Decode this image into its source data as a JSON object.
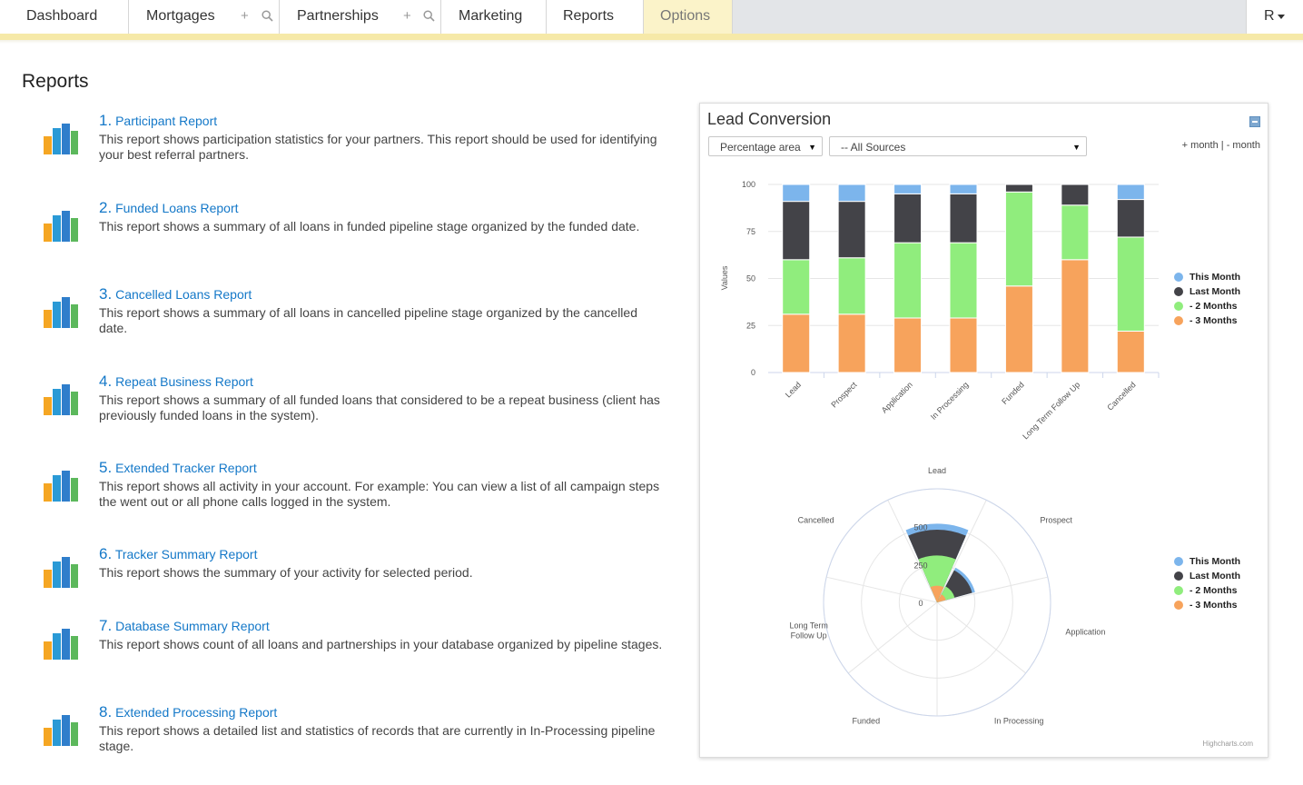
{
  "nav": {
    "tabs": [
      {
        "label": "Dashboard"
      },
      {
        "label": "Mortgages"
      },
      {
        "label": "Partnerships"
      },
      {
        "label": "Marketing"
      },
      {
        "label": "Reports"
      },
      {
        "label": "Options"
      }
    ],
    "add_icon": "+",
    "user_label": "R"
  },
  "page": {
    "title": "Reports"
  },
  "reports": [
    {
      "num": "1.",
      "title": "Participant Report",
      "desc": "This report shows participation statistics for your partners. This report should be used for identifying your best referral partners."
    },
    {
      "num": "2.",
      "title": "Funded Loans Report",
      "desc": "This report shows a summary of all loans in funded pipeline stage organized by the funded date."
    },
    {
      "num": "3.",
      "title": "Cancelled Loans Report",
      "desc": "This report shows a summary of all loans in cancelled pipeline stage organized by the cancelled date."
    },
    {
      "num": "4.",
      "title": "Repeat Business Report",
      "desc": "This report shows a summary of all funded loans that considered to be a repeat business (client has previously funded loans in the system)."
    },
    {
      "num": "5.",
      "title": "Extended Tracker Report",
      "desc": "This report shows all activity in your account. For example: You can view a list of all campaign steps the went out or all phone calls logged in the system."
    },
    {
      "num": "6.",
      "title": "Tracker Summary Report",
      "desc": "This report shows the summary of your activity for selected period."
    },
    {
      "num": "7.",
      "title": "Database Summary Report",
      "desc": "This report shows count of all loans and partnerships in your database organized by pipeline stages."
    },
    {
      "num": "8.",
      "title": "Extended Processing Report",
      "desc": "This report shows a detailed list and statistics of records that are currently in In-Processing pipeline stage."
    }
  ],
  "panel": {
    "title": "Lead Conversion",
    "type_select": "Percentage area",
    "source_select": "-- All Sources",
    "month_toggle": "+ month  |  - month",
    "credits": "Highcharts.com"
  },
  "colors": {
    "this_month": "#7cb5ec",
    "last_month": "#434348",
    "two_months": "#90ed7d",
    "three_months": "#f7a35c",
    "link": "#1478c8",
    "nav_accent": "#f6e9a8"
  },
  "chart_data": [
    {
      "type": "bar",
      "stacking": "percent",
      "categories": [
        "Lead",
        "Prospect",
        "Application",
        "In Processing",
        "Funded",
        "Long Term Follow Up",
        "Cancelled"
      ],
      "ylabel": "Values",
      "ylim": [
        0,
        100
      ],
      "yticks": [
        0,
        25,
        50,
        75,
        100
      ],
      "series": [
        {
          "name": "This Month",
          "values": [
            9,
            9,
            5,
            5,
            0,
            0,
            8
          ]
        },
        {
          "name": "Last Month",
          "values": [
            31,
            30,
            26,
            26,
            4,
            11,
            20
          ]
        },
        {
          "name": "- 2 Months",
          "values": [
            29,
            30,
            40,
            40,
            50,
            29,
            50
          ]
        },
        {
          "name": "- 3 Months",
          "values": [
            31,
            31,
            29,
            29,
            46,
            60,
            22
          ]
        }
      ],
      "legend": "right"
    },
    {
      "type": "polar-column",
      "categories": [
        "Lead",
        "Prospect",
        "Application",
        "In Processing",
        "Funded",
        "Long Term Follow Up",
        "Cancelled"
      ],
      "ytick_labels": [
        "0",
        "250",
        "500"
      ],
      "series": [
        {
          "name": "This Month",
          "values": [
            520,
            260,
            0,
            0,
            0,
            0,
            0
          ]
        },
        {
          "name": "Last Month",
          "values": [
            480,
            240,
            0,
            0,
            0,
            0,
            0
          ]
        },
        {
          "name": "- 2 Months",
          "values": [
            310,
            120,
            0,
            0,
            0,
            0,
            0
          ]
        },
        {
          "name": "- 3 Months",
          "values": [
            110,
            60,
            0,
            0,
            0,
            0,
            0
          ]
        }
      ],
      "legend": "right"
    }
  ]
}
